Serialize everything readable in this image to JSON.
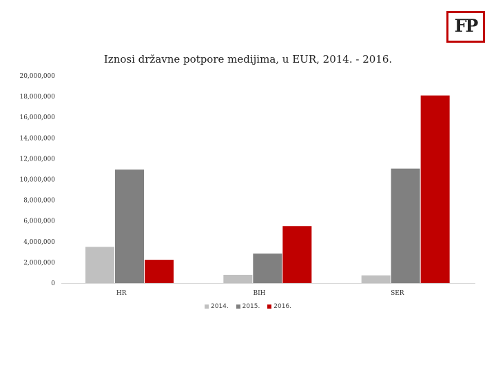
{
  "logo": {
    "text": "FP"
  },
  "colors": {
    "2014": "#c0c0c0",
    "2015": "#808080",
    "2016": "#c00000",
    "axis": "#d9d9d9"
  },
  "chart_data": {
    "type": "bar",
    "title": "Iznosi državne potpore medijima, u EUR, 2014. - 2016.",
    "categories": [
      "HR",
      "BIH",
      "SER"
    ],
    "series": [
      {
        "name": "2014.",
        "values": [
          3500000,
          800000,
          750000
        ]
      },
      {
        "name": "2015.",
        "values": [
          10950000,
          2850000,
          11050000
        ]
      },
      {
        "name": "2016.",
        "values": [
          2250000,
          5500000,
          18100000
        ]
      }
    ],
    "ylim": [
      0,
      20000000
    ],
    "yticks": [
      0,
      2000000,
      4000000,
      6000000,
      8000000,
      10000000,
      12000000,
      14000000,
      16000000,
      18000000,
      20000000
    ],
    "ytick_labels": [
      "0",
      "2,000,000",
      "4,000,000",
      "6,000,000",
      "8,000,000",
      "10,000,000",
      "12,000,000",
      "14,000,000",
      "16,000,000",
      "18,000,000",
      "20,000,000"
    ],
    "grid": false,
    "legend": "bottom"
  }
}
